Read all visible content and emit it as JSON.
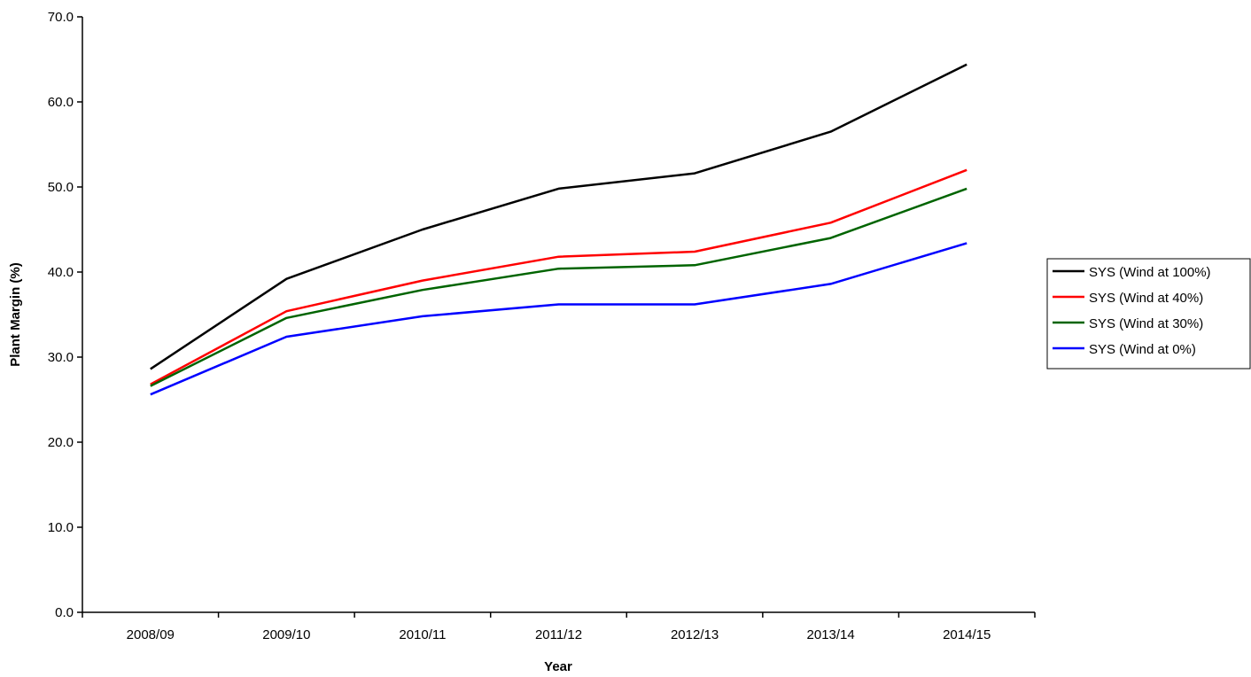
{
  "chart_data": {
    "type": "line",
    "title": "",
    "xlabel": "Year",
    "ylabel": "Plant Margin (%)",
    "categories": [
      "2008/09",
      "2009/10",
      "2010/11",
      "2011/12",
      "2012/13",
      "2013/14",
      "2014/15"
    ],
    "ylim": [
      0,
      70
    ],
    "yticks": [
      "0.0",
      "10.0",
      "20.0",
      "30.0",
      "40.0",
      "50.0",
      "60.0",
      "70.0"
    ],
    "grid": false,
    "legend_position": "right",
    "series": [
      {
        "name": "SYS (Wind at 100%)",
        "color": "#000000",
        "values": [
          28.6,
          39.2,
          45.0,
          49.8,
          51.6,
          56.5,
          64.4
        ]
      },
      {
        "name": "SYS (Wind at 40%)",
        "color": "#ff0000",
        "values": [
          26.8,
          35.4,
          39.0,
          41.8,
          42.4,
          45.8,
          52.0
        ]
      },
      {
        "name": "SYS (Wind at 30%)",
        "color": "#006400",
        "values": [
          26.6,
          34.6,
          37.9,
          40.4,
          40.8,
          44.0,
          49.8
        ]
      },
      {
        "name": "SYS (Wind at 0%)",
        "color": "#0000ff",
        "values": [
          25.6,
          32.4,
          34.8,
          36.2,
          36.2,
          38.6,
          43.4
        ]
      }
    ]
  }
}
